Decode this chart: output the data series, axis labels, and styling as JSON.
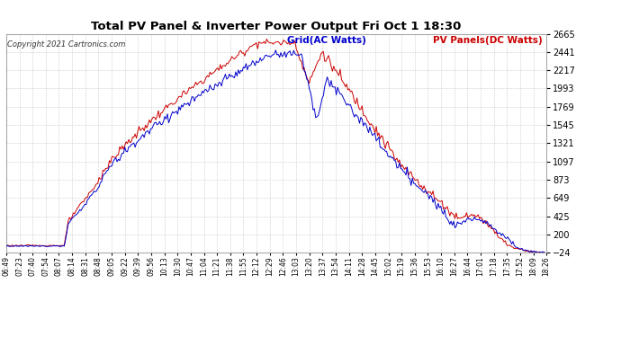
{
  "title": "Total PV Panel & Inverter Power Output Fri Oct 1 18:30",
  "copyright": "Copyright 2021 Cartronics.com",
  "legend_grid": "Grid(AC Watts)",
  "legend_pv": "PV Panels(DC Watts)",
  "grid_color": "#0000cc",
  "pv_color": "#cc0000",
  "background_color": "#ffffff",
  "plot_bg_color": "#ffffff",
  "grid_line_color": "#cccccc",
  "ylim": [
    -23.5,
    2664.9
  ],
  "yticks": [
    -23.5,
    200.5,
    424.6,
    648.6,
    872.6,
    1096.7,
    1320.7,
    1544.7,
    1768.8,
    1992.8,
    2216.9,
    2440.9,
    2664.9
  ],
  "x_labels": [
    "06:49",
    "07:23",
    "07:40",
    "07:54",
    "08:07",
    "08:14",
    "08:31",
    "08:48",
    "09:05",
    "09:22",
    "09:39",
    "09:56",
    "10:13",
    "10:30",
    "10:47",
    "11:04",
    "11:21",
    "11:38",
    "11:55",
    "12:12",
    "12:29",
    "12:46",
    "13:03",
    "13:20",
    "13:37",
    "13:54",
    "14:11",
    "14:28",
    "14:45",
    "15:02",
    "15:19",
    "15:36",
    "15:53",
    "16:10",
    "16:27",
    "16:44",
    "17:01",
    "17:18",
    "17:35",
    "17:52",
    "18:09",
    "18:26"
  ],
  "n_points": 420
}
